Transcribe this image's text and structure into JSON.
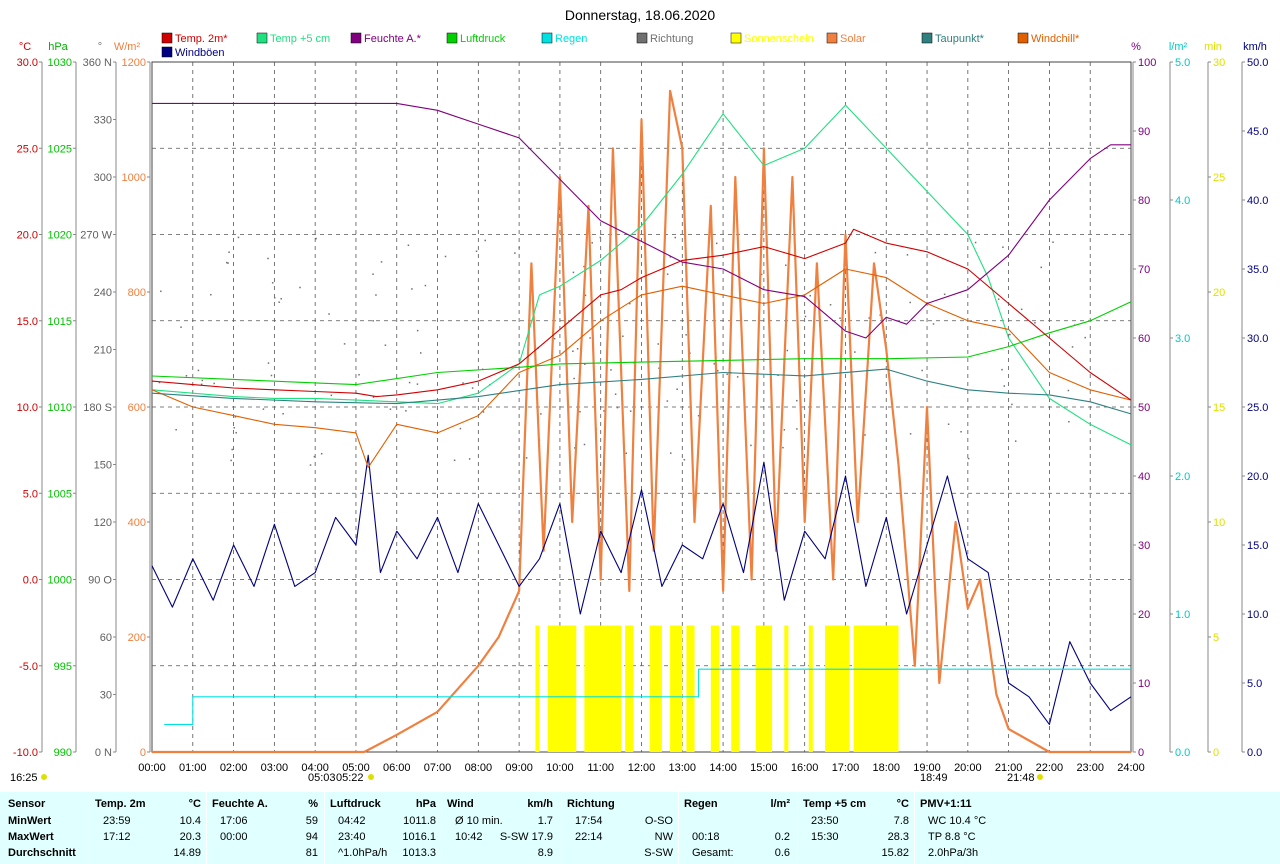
{
  "title": "Donnerstag, 18.06.2020",
  "legend": [
    {
      "label": "Temp. 2m*",
      "color": "#d00000"
    },
    {
      "label": "Temp +5 cm",
      "color": "#20e080"
    },
    {
      "label": "Feuchte A.*",
      "color": "#800080"
    },
    {
      "label": "Luftdruck",
      "color": "#00d000"
    },
    {
      "label": "Regen",
      "color": "#00e0e0"
    },
    {
      "label": "Richtung",
      "color": "#707070"
    },
    {
      "label": "Sonnenschein",
      "color": "#ffff00"
    },
    {
      "label": "Solar",
      "color": "#f08040"
    },
    {
      "label": "Taupunkt*",
      "color": "#308080"
    },
    {
      "label": "Windchill*",
      "color": "#e06000"
    },
    {
      "label": "Windböen",
      "color": "#000080"
    }
  ],
  "units_left": [
    {
      "text": "°C",
      "color": "#d00000"
    },
    {
      "text": "hPa",
      "color": "#00b000"
    },
    {
      "text": "°",
      "color": "#707070"
    },
    {
      "text": "W/m²",
      "color": "#f08040"
    }
  ],
  "units_right": [
    {
      "text": "%",
      "color": "#800080"
    },
    {
      "text": "l/m²",
      "color": "#00c8c8"
    },
    {
      "text": "min",
      "color": "#e0e000"
    },
    {
      "text": "km/h",
      "color": "#000080"
    }
  ],
  "axis_labels": {
    "temp": [
      "30.0",
      "25.0",
      "20.0",
      "15.0",
      "10.0",
      "5.0",
      "0.0",
      "-5.0",
      "-10.0"
    ],
    "pressure": [
      "1030",
      "1025",
      "1020",
      "1015",
      "1010",
      "1005",
      "1000",
      "995",
      "990"
    ],
    "direction": [
      "360 N",
      "330",
      "300",
      "270 W",
      "240",
      "210",
      "180 S",
      "150",
      "120",
      "90 O",
      "60",
      "30",
      "0 N"
    ],
    "solar": [
      "1200",
      "1000",
      "800",
      "600",
      "400",
      "200",
      "0"
    ],
    "humidity": [
      "100",
      "90",
      "80",
      "70",
      "60",
      "50",
      "40",
      "30",
      "20",
      "10",
      "0"
    ],
    "rain": [
      "5.0",
      "4.0",
      "3.0",
      "2.0",
      "1.0",
      "0.0"
    ],
    "sunshine": [
      "30",
      "25",
      "20",
      "15",
      "10",
      "5",
      "0"
    ],
    "wind": [
      "50.0",
      "45.0",
      "40.0",
      "35.0",
      "30.0",
      "25.0",
      "20.0",
      "15.0",
      "10.0",
      "5.0",
      "0.0"
    ],
    "time": [
      "00:00",
      "01:00",
      "02:00",
      "03:00",
      "04:00",
      "05:00",
      "06:00",
      "07:00",
      "08:00",
      "09:00",
      "10:00",
      "11:00",
      "12:00",
      "13:00",
      "14:00",
      "15:00",
      "16:00",
      "17:00",
      "18:00",
      "19:00",
      "20:00",
      "21:00",
      "22:00",
      "23:00",
      "24:00"
    ]
  },
  "marker_labels": [
    "16:25",
    "05:03",
    "05:22",
    "18:49",
    "21:48"
  ],
  "chart_data": {
    "type": "line",
    "title": "Donnerstag, 18.06.2020",
    "x_unit": "h",
    "series": [
      {
        "name": "Temp. 2m*",
        "unit": "°C",
        "color": "#d00000",
        "x": [
          0,
          1,
          2,
          3,
          4,
          5,
          5.5,
          6,
          7,
          8,
          9,
          10,
          11,
          11.5,
          12,
          13,
          14,
          15,
          16,
          17,
          17.2,
          18,
          19,
          20,
          21,
          22,
          23,
          24
        ],
        "y": [
          11.5,
          11.3,
          11.1,
          11.0,
          10.9,
          10.8,
          10.6,
          10.7,
          11.0,
          11.5,
          12.5,
          14.5,
          16.5,
          16.8,
          17.5,
          18.5,
          18.8,
          19.3,
          18.6,
          19.5,
          20.3,
          19.5,
          19.0,
          18.0,
          16.0,
          14.0,
          12.0,
          10.4
        ]
      },
      {
        "name": "Temp +5 cm",
        "unit": "°C",
        "color": "#20e080",
        "x": [
          0,
          1,
          2,
          3,
          4,
          5,
          6,
          7,
          8,
          9,
          9.5,
          10,
          11,
          12,
          13,
          14,
          15,
          16,
          17,
          18,
          19,
          20,
          20.5,
          21,
          22,
          23,
          24
        ],
        "y": [
          11.0,
          10.8,
          10.6,
          10.5,
          10.5,
          10.4,
          10.3,
          10.2,
          10.8,
          12.5,
          16.5,
          17.0,
          18.5,
          20.5,
          23.5,
          27.0,
          24.0,
          25.0,
          27.5,
          25.0,
          22.5,
          20.0,
          17.5,
          14.0,
          10.5,
          9.0,
          7.8
        ]
      },
      {
        "name": "Feuchte A.*",
        "unit": "%",
        "color": "#800080",
        "x": [
          0,
          2,
          4,
          5.3,
          6,
          7,
          8,
          9,
          10,
          11,
          12,
          13,
          14,
          15,
          16,
          17,
          17.5,
          18,
          18.5,
          19,
          20,
          21,
          22,
          23,
          23.5,
          24
        ],
        "y": [
          94,
          94,
          94,
          94,
          94,
          93,
          91,
          89,
          83,
          77,
          74,
          71,
          70,
          67,
          66,
          61,
          60,
          63,
          62,
          65,
          67,
          72,
          80,
          86,
          88,
          88
        ]
      },
      {
        "name": "Luftdruck",
        "unit": "hPa",
        "color": "#00d000",
        "x": [
          0,
          2,
          4,
          5,
          7,
          9,
          10,
          12,
          14,
          16,
          18,
          20,
          21,
          22,
          23,
          24
        ],
        "y": [
          1011.8,
          1011.6,
          1011.4,
          1011.3,
          1012.0,
          1012.3,
          1012.5,
          1012.6,
          1012.7,
          1012.8,
          1012.8,
          1012.9,
          1013.5,
          1014.3,
          1015.0,
          1016.1
        ]
      },
      {
        "name": "Taupunkt*",
        "unit": "°C",
        "color": "#308080",
        "x": [
          0,
          2,
          4,
          6,
          8,
          10,
          12,
          14,
          16,
          18,
          19,
          20,
          21,
          22,
          23,
          24
        ],
        "y": [
          10.8,
          10.5,
          10.3,
          10.2,
          10.6,
          11.3,
          11.6,
          12.0,
          11.8,
          12.2,
          11.5,
          11.0,
          10.8,
          10.7,
          10.3,
          9.6
        ]
      },
      {
        "name": "Windchill*",
        "unit": "°C",
        "color": "#e06000",
        "x": [
          0,
          1,
          2,
          3,
          4,
          5,
          5.3,
          6,
          7,
          8,
          9,
          10,
          11,
          12,
          13,
          14,
          15,
          16,
          17,
          18,
          19,
          20,
          21,
          22,
          23,
          24
        ],
        "y": [
          11.0,
          10.0,
          9.5,
          9.0,
          8.8,
          8.5,
          6.5,
          9.0,
          8.5,
          9.5,
          12.0,
          13.0,
          15.0,
          16.5,
          17.0,
          16.5,
          16.0,
          16.5,
          18.0,
          17.5,
          16.0,
          15.0,
          14.5,
          12.0,
          11.0,
          10.4
        ]
      },
      {
        "name": "Solar",
        "unit": "W/m²",
        "color": "#f08040",
        "x": [
          0,
          5.2,
          6,
          7,
          8,
          8.5,
          9,
          9.3,
          9.6,
          10,
          10.3,
          10.7,
          11,
          11.3,
          11.7,
          12,
          12.3,
          12.7,
          13,
          13.3,
          13.7,
          14,
          14.3,
          14.7,
          15,
          15.3,
          15.7,
          16,
          16.3,
          16.7,
          17,
          17.3,
          17.7,
          18,
          18.3,
          18.7,
          19,
          19.3,
          19.7,
          20,
          20.3,
          20.7,
          21,
          21.5,
          22,
          22.5,
          24
        ],
        "y": [
          0,
          0,
          30,
          70,
          150,
          200,
          280,
          850,
          350,
          1000,
          400,
          950,
          300,
          1050,
          280,
          1100,
          350,
          1150,
          1050,
          400,
          950,
          280,
          1000,
          300,
          1050,
          350,
          1000,
          400,
          850,
          300,
          900,
          400,
          850,
          700,
          500,
          150,
          600,
          120,
          400,
          250,
          300,
          100,
          40,
          20,
          0,
          0,
          0
        ]
      },
      {
        "name": "Regen",
        "unit": "l/m²",
        "color": "#00e0e0",
        "x": [
          0.3,
          0.9,
          1.0,
          13.3,
          13.4,
          24
        ],
        "y": [
          0.2,
          0.2,
          0.4,
          0.4,
          0.6,
          0.6
        ]
      },
      {
        "name": "Windböen",
        "unit": "km/h",
        "color": "#000080",
        "x": [
          0,
          0.5,
          1,
          1.5,
          2,
          2.5,
          3,
          3.5,
          4,
          4.5,
          5,
          5.3,
          5.6,
          6,
          6.5,
          7,
          7.5,
          8,
          8.5,
          9,
          9.5,
          10,
          10.5,
          11,
          11.5,
          12,
          12.5,
          13,
          13.5,
          14,
          14.5,
          15,
          15.5,
          16,
          16.5,
          17,
          17.5,
          18,
          18.5,
          19,
          19.5,
          20,
          20.5,
          21,
          21.5,
          22,
          22.5,
          23,
          23.5,
          24
        ],
        "y": [
          13.5,
          10.5,
          14,
          11,
          15,
          12,
          16.5,
          12,
          13,
          17,
          15,
          21.5,
          13,
          16,
          14,
          17,
          13,
          18,
          15,
          12,
          14,
          18,
          10,
          16,
          13,
          19,
          12,
          15,
          14,
          18,
          13,
          21,
          11,
          16,
          14,
          20,
          12,
          17,
          10,
          15,
          20,
          14,
          13,
          5,
          4,
          2,
          8,
          5,
          3,
          4
        ]
      }
    ],
    "axes": {
      "temp_c": [
        -10,
        30
      ],
      "pressure_hpa": [
        990,
        1030
      ],
      "direction_deg": [
        0,
        360
      ],
      "solar_wm2": [
        0,
        1200
      ],
      "humidity_pct": [
        0,
        100
      ],
      "rain_lm2": [
        0,
        5
      ],
      "sunshine_min": [
        0,
        30
      ],
      "wind_kmh": [
        0,
        50
      ]
    },
    "sunshine_blocks": [
      [
        9.4,
        9.5
      ],
      [
        9.7,
        10.4
      ],
      [
        10.6,
        11.5
      ],
      [
        11.6,
        11.8
      ],
      [
        12.2,
        12.5
      ],
      [
        12.7,
        13.0
      ],
      [
        13.1,
        13.3
      ],
      [
        13.7,
        13.9
      ],
      [
        14.2,
        14.4
      ],
      [
        14.8,
        15.2
      ],
      [
        15.5,
        15.6
      ],
      [
        16.1,
        16.2
      ],
      [
        16.5,
        17.1
      ],
      [
        17.2,
        18.3
      ]
    ]
  },
  "stats": {
    "columns": [
      {
        "label": "Sensor",
        "unit": "",
        "rows": [
          {
            "a": "MinWert",
            "b": ""
          },
          {
            "a": "MaxWert",
            "b": ""
          },
          {
            "a": "Durchschnitt",
            "b": ""
          }
        ]
      },
      {
        "label": "Temp. 2m",
        "unit": "°C",
        "rows": [
          {
            "a": "23:59",
            "b": "10.4"
          },
          {
            "a": "17:12",
            "b": "20.3"
          },
          {
            "a": "",
            "b": "14.89"
          }
        ]
      },
      {
        "label": "Feuchte A.",
        "unit": "%",
        "rows": [
          {
            "a": "17:06",
            "b": "59"
          },
          {
            "a": "00:00",
            "b": "94"
          },
          {
            "a": "",
            "b": "81"
          }
        ]
      },
      {
        "label": "Luftdruck",
        "unit": "hPa",
        "rows": [
          {
            "a": "04:42",
            "b": "1011.8"
          },
          {
            "a": "23:40",
            "b": "1016.1"
          },
          {
            "a": "^1.0hPa/h",
            "b": "1013.3"
          }
        ]
      },
      {
        "label": "Wind",
        "unit": "km/h",
        "rows": [
          {
            "a": "Ø 10 min.",
            "b": "1.7"
          },
          {
            "a": "10:42",
            "b": "S-SW 17.9"
          },
          {
            "a": "",
            "b": "8.9"
          }
        ]
      },
      {
        "label": "Richtung",
        "unit": "",
        "rows": [
          {
            "a": "17:54",
            "b": "O-SO"
          },
          {
            "a": "22:14",
            "b": "NW"
          },
          {
            "a": "",
            "b": "S-SW"
          }
        ]
      },
      {
        "label": "Regen",
        "unit": "l/m²",
        "rows": [
          {
            "a": "",
            "b": ""
          },
          {
            "a": "00:18",
            "b": "0.2"
          },
          {
            "a": "Gesamt:",
            "b": "0.6"
          }
        ]
      },
      {
        "label": "Temp +5 cm",
        "unit": "°C",
        "rows": [
          {
            "a": "23:50",
            "b": "7.8"
          },
          {
            "a": "15:30",
            "b": "28.3"
          },
          {
            "a": "",
            "b": "15.82"
          }
        ]
      },
      {
        "label": "PMV+1:11",
        "unit": "",
        "rows": [
          {
            "a": "WC 10.4 °C",
            "b": ""
          },
          {
            "a": "TP 8.8 °C",
            "b": ""
          },
          {
            "a": "2.0hPa/3h",
            "b": ""
          }
        ]
      }
    ]
  }
}
